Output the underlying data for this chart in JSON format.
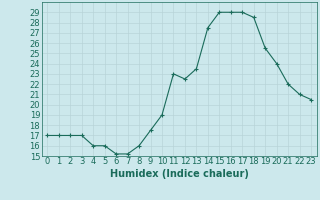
{
  "x": [
    0,
    1,
    2,
    3,
    4,
    5,
    6,
    7,
    8,
    9,
    10,
    11,
    12,
    13,
    14,
    15,
    16,
    17,
    18,
    19,
    20,
    21,
    22,
    23
  ],
  "y": [
    17,
    17,
    17,
    17,
    16,
    16,
    15.2,
    15.2,
    16,
    17.5,
    19,
    23,
    22.5,
    23.5,
    27.5,
    29,
    29,
    29,
    28.5,
    25.5,
    24,
    22,
    21,
    20.5
  ],
  "line_color": "#1a6b5a",
  "marker": "+",
  "marker_size": 3,
  "bg_color": "#cce8ec",
  "grid_color": "#b8d4d8",
  "xlabel": "Humidex (Indice chaleur)",
  "xlim": [
    -0.5,
    23.5
  ],
  "ylim": [
    15,
    30
  ],
  "yticks": [
    15,
    16,
    17,
    18,
    19,
    20,
    21,
    22,
    23,
    24,
    25,
    26,
    27,
    28,
    29
  ],
  "xticks": [
    0,
    1,
    2,
    3,
    4,
    5,
    6,
    7,
    8,
    9,
    10,
    11,
    12,
    13,
    14,
    15,
    16,
    17,
    18,
    19,
    20,
    21,
    22,
    23
  ],
  "font_color": "#1a6b5a",
  "font_size": 6,
  "xlabel_fontsize": 7,
  "linewidth": 0.8,
  "markeredgewidth": 0.8
}
